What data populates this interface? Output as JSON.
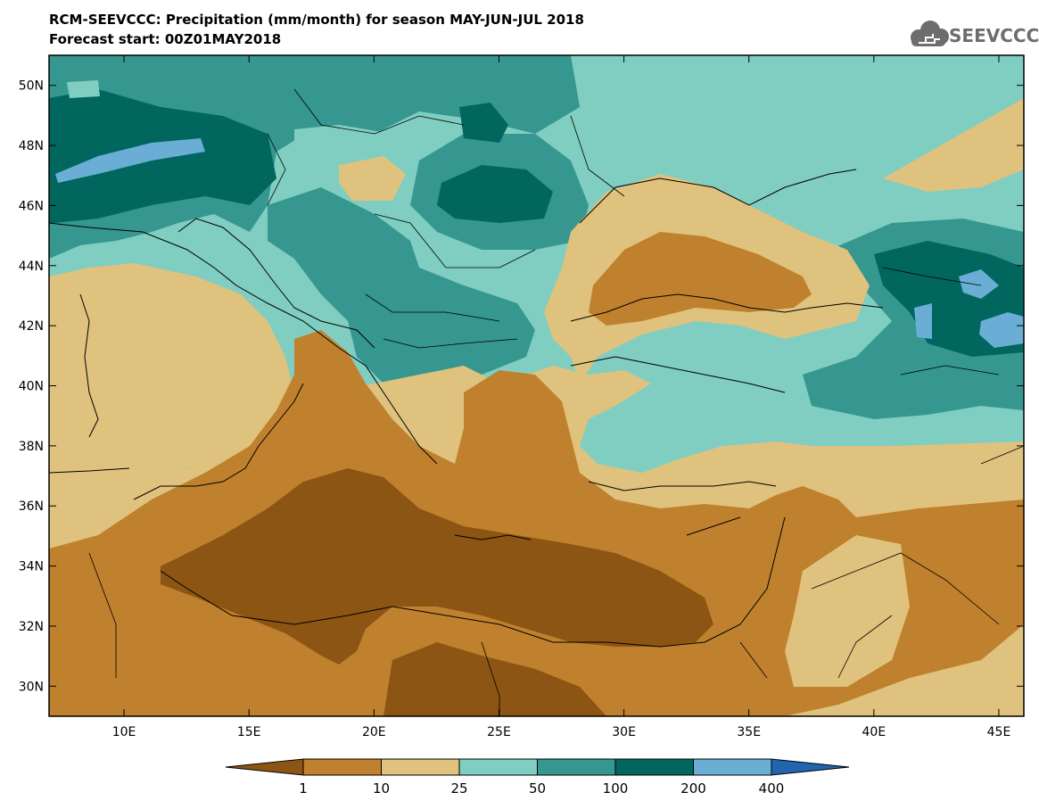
{
  "header": {
    "line1": "RCM-SEEVCCC: Precipitation (mm/month) for season MAY-JUN-JUL 2018",
    "line2": "Forecast start: 00Z01MAY2018",
    "logo_text": "SEEVCCC"
  },
  "map": {
    "lon_range": [
      7,
      46
    ],
    "lat_range": [
      29,
      51
    ],
    "lat_ticks": [
      {
        "value": 50,
        "label": "50N"
      },
      {
        "value": 48,
        "label": "48N"
      },
      {
        "value": 46,
        "label": "46N"
      },
      {
        "value": 44,
        "label": "44N"
      },
      {
        "value": 42,
        "label": "42N"
      },
      {
        "value": 40,
        "label": "40N"
      },
      {
        "value": 38,
        "label": "38N"
      },
      {
        "value": 36,
        "label": "36N"
      },
      {
        "value": 34,
        "label": "34N"
      },
      {
        "value": 32,
        "label": "32N"
      },
      {
        "value": 30,
        "label": "30N"
      }
    ],
    "lon_ticks": [
      {
        "value": 10,
        "label": "10E"
      },
      {
        "value": 15,
        "label": "15E"
      },
      {
        "value": 20,
        "label": "20E"
      },
      {
        "value": 25,
        "label": "25E"
      },
      {
        "value": 30,
        "label": "30E"
      },
      {
        "value": 35,
        "label": "35E"
      },
      {
        "value": 40,
        "label": "40E"
      },
      {
        "value": 45,
        "label": "45E"
      }
    ]
  },
  "colorbar": {
    "colors": [
      "#8c5513",
      "#bf812d",
      "#dfc27d",
      "#80cdc1",
      "#35978f",
      "#01665e",
      "#6aaed6",
      "#2166ac"
    ],
    "labels": [
      "1",
      "10",
      "25",
      "50",
      "100",
      "200",
      "400"
    ]
  }
}
